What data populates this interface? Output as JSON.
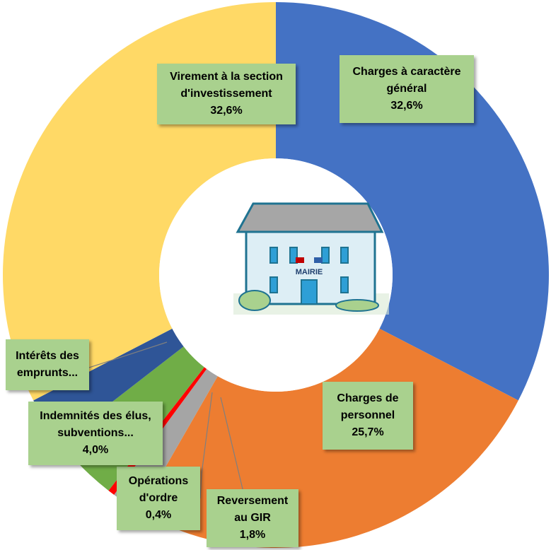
{
  "chart_data": {
    "type": "donut",
    "categories": [
      "Charges à caractère général",
      "Charges de personnel",
      "Reversement au GIR",
      "Opérations d'ordre",
      "Indemnités des élus, subventions...",
      "Intérêts des emprunts...",
      "Virement à la section d'investissement"
    ],
    "values": [
      32.6,
      25.7,
      1.8,
      0.4,
      4.0,
      2.9,
      32.6
    ],
    "value_labels": [
      "32,6%",
      "25,7%",
      "1,8%",
      "0,4%",
      "4,0%",
      null,
      "32,6%"
    ],
    "colors": [
      "#4472c4",
      "#ed7d31",
      "#a5a5a5",
      "#ff0000",
      "#70ad47",
      "#2f5597",
      "#ffd966"
    ],
    "center_text": "MAIRIE"
  }
}
